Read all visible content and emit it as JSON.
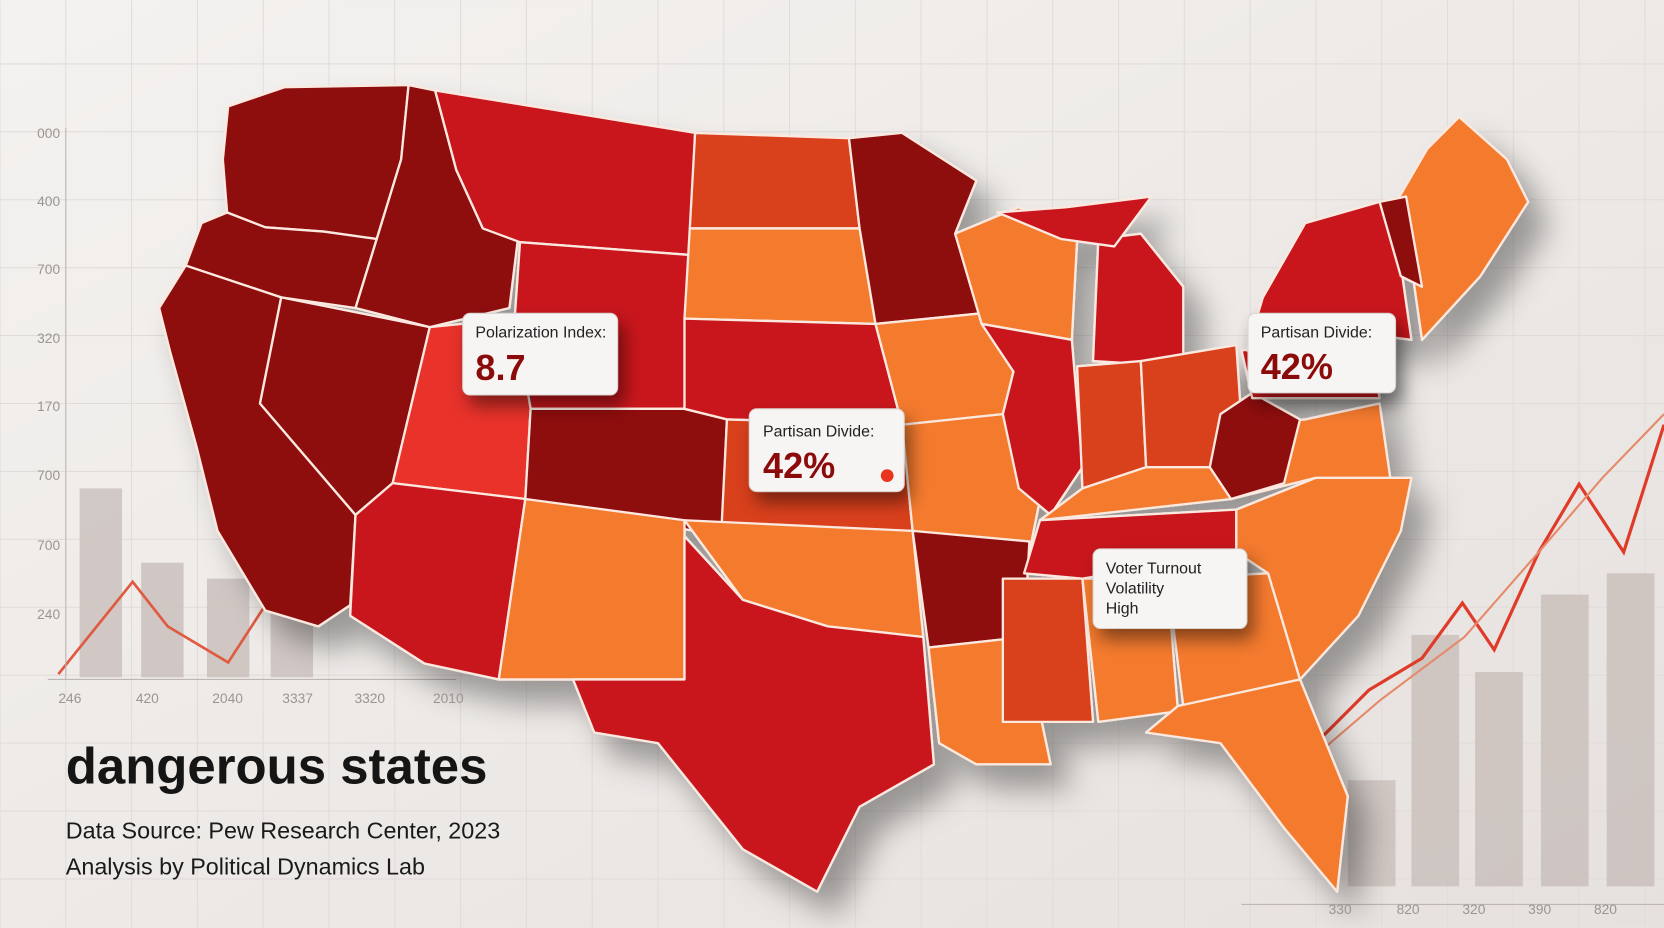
{
  "title": "dangerous states",
  "source_lines": [
    "Data Source: Pew Research Center, 2023",
    "Analysis by Political Dynamics Lab"
  ],
  "callouts": [
    {
      "label": "Polarization Index:",
      "value": "8.7"
    },
    {
      "label": "Partisan Divide:",
      "value": "42%"
    },
    {
      "label": "Partisan Divide:",
      "value": "42%"
    },
    {
      "lines": [
        "Voter Turnout",
        "Volatility",
        "High"
      ]
    }
  ],
  "axis_labels": {
    "left": [
      "000",
      "400",
      "700",
      "320",
      "170",
      "700",
      "700",
      "240"
    ],
    "bottom_left": [
      "246",
      "420",
      "2040",
      "3337",
      "3320",
      "2010"
    ],
    "bottom_right": [
      "330",
      "820",
      "320",
      "390",
      "820"
    ]
  }
}
